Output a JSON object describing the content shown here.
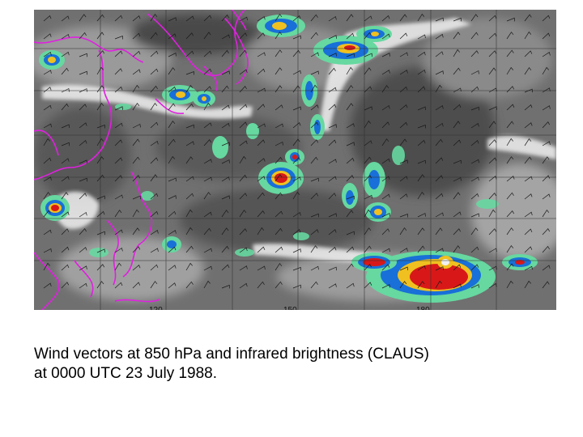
{
  "figure": {
    "caption_line1": "Wind vectors at 850 hPa and infrared brightness (CLAUS)",
    "caption_line2": "at 0000 UTC 23 July 1988.",
    "longitude_labels": [
      "120",
      "150",
      "180"
    ]
  },
  "layers": {
    "background": "infrared-brightness-grayscale",
    "overlay": "wind-vector-barbs",
    "coastlines": "magenta-coastline-outlines"
  },
  "colors": {
    "coastline": "#e020e0",
    "convection_green": "#66d8a0",
    "convection_blue": "#1870d8",
    "convection_yellow": "#f0c020",
    "convection_red": "#d81818",
    "cloud_white": "#f2f2f2",
    "grid": "#303030"
  }
}
